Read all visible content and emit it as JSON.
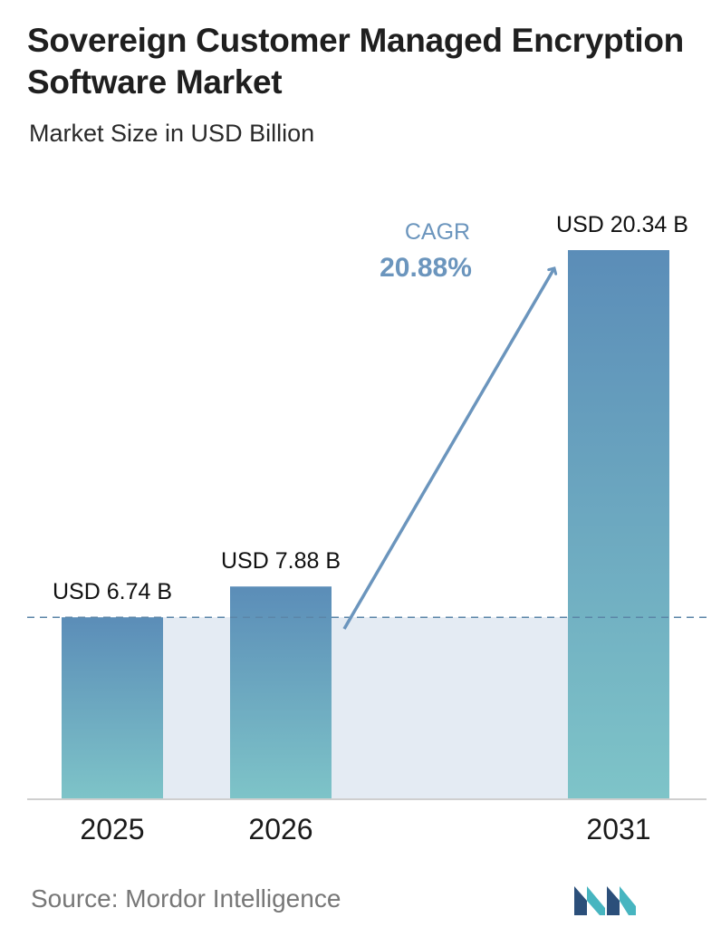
{
  "header": {
    "title": "Sovereign Customer Managed Encryption Software Market",
    "subtitle": "Market Size in USD Billion"
  },
  "footer": {
    "source": "Source:  Mordor Intelligence"
  },
  "colors": {
    "bar_top": "#5b8db8",
    "bar_bottom": "#7ec4c8",
    "band": "#e4ebf3",
    "baseline_dash": "#5b86a8",
    "arrow": "#6b95bd",
    "cagr_label": "#6b95bd",
    "logo_dark": "#2b4f7a",
    "logo_light": "#47b5c0"
  },
  "chart_data": {
    "type": "bar",
    "categories": [
      "2025",
      "2026",
      "2031"
    ],
    "values": [
      6.74,
      7.88,
      20.34
    ],
    "value_labels": [
      "USD 6.74 B",
      "USD 7.88 B",
      "USD 20.34 B"
    ],
    "unit": "USD Billion",
    "ylim": [
      0,
      20.34
    ],
    "grid": false,
    "annotation": {
      "label": "CAGR",
      "value": "20.88%",
      "from_category": "2026",
      "to_category": "2031"
    },
    "reference_line_value": 6.74
  }
}
